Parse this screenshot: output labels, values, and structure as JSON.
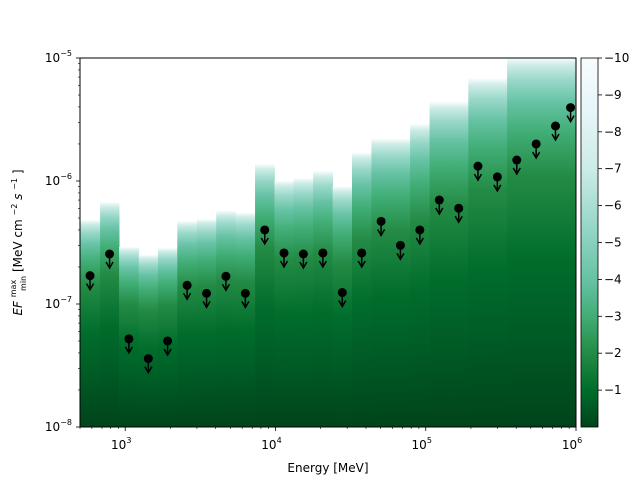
{
  "chart_data": {
    "type": "heatmap",
    "xlabel": "Energy [MeV]",
    "ylabel_main": "EF",
    "ylabel_sup": "max",
    "ylabel_sub": "min",
    "ylabel_units": " [MeV cm",
    "ylabel_units_exp1": "−2",
    "ylabel_units_mid": "s",
    "ylabel_units_exp2": "−1",
    "ylabel_units_end": "]",
    "x_scale": "log",
    "y_scale": "log",
    "xlim": [
      500,
      1000000
    ],
    "ylim": [
      1e-08,
      1e-05
    ],
    "x_ticks": [
      {
        "value": 1000,
        "base": "10",
        "exp": "3"
      },
      {
        "value": 10000,
        "base": "10",
        "exp": "4"
      },
      {
        "value": 100000,
        "base": "10",
        "exp": "5"
      },
      {
        "value": 1000000,
        "base": "10",
        "exp": "6"
      }
    ],
    "y_ticks": [
      {
        "value": 1e-08,
        "base": "10",
        "exp": "−8"
      },
      {
        "value": 1e-07,
        "base": "10",
        "exp": "−7"
      },
      {
        "value": 1e-06,
        "base": "10",
        "exp": "−6"
      },
      {
        "value": 1e-05,
        "base": "10",
        "exp": "−5"
      }
    ],
    "colorbar": {
      "colormap": "BuGn_r",
      "range": [
        -10,
        0
      ],
      "tick_labels": [
        "−1",
        "−2",
        "−3",
        "−4",
        "−5",
        "−6",
        "−7",
        "−8",
        "−9",
        "−10"
      ],
      "tick_values": [
        -1,
        -2,
        -3,
        -4,
        -5,
        -6,
        -7,
        -8,
        -9,
        -10
      ]
    },
    "bins": [
      {
        "e_min": 500,
        "e_max": 680,
        "top": 4.8e-07,
        "ul": 1.7e-07
      },
      {
        "e_min": 680,
        "e_max": 910,
        "top": 6.7e-07,
        "ul": 2.55e-07
      },
      {
        "e_min": 910,
        "e_max": 1230,
        "top": 2.9e-07,
        "ul": 5.2e-08
      },
      {
        "e_min": 1230,
        "e_max": 1650,
        "top": 2.5e-07,
        "ul": 3.6e-08
      },
      {
        "e_min": 1650,
        "e_max": 2220,
        "top": 2.85e-07,
        "ul": 5e-08
      },
      {
        "e_min": 2220,
        "e_max": 3000,
        "top": 4.7e-07,
        "ul": 1.42e-07
      },
      {
        "e_min": 3000,
        "e_max": 4030,
        "top": 4.9e-07,
        "ul": 1.22e-07
      },
      {
        "e_min": 4030,
        "e_max": 5430,
        "top": 5.7e-07,
        "ul": 1.68e-07
      },
      {
        "e_min": 5430,
        "e_max": 7310,
        "top": 5.5e-07,
        "ul": 1.22e-07
      },
      {
        "e_min": 7310,
        "e_max": 9840,
        "top": 1.37e-06,
        "ul": 4e-07
      },
      {
        "e_min": 9840,
        "e_max": 13200,
        "top": 1e-06,
        "ul": 2.6e-07
      },
      {
        "e_min": 13200,
        "e_max": 17800,
        "top": 1.05e-06,
        "ul": 2.55e-07
      },
      {
        "e_min": 17800,
        "e_max": 24000,
        "top": 1.2e-06,
        "ul": 2.6e-07
      },
      {
        "e_min": 24000,
        "e_max": 32300,
        "top": 9e-07,
        "ul": 1.24e-07
      },
      {
        "e_min": 32300,
        "e_max": 43500,
        "top": 1.7e-06,
        "ul": 2.6e-07
      },
      {
        "e_min": 43500,
        "e_max": 58500,
        "top": 2.2e-06,
        "ul": 4.7e-07
      },
      {
        "e_min": 58500,
        "e_max": 78700,
        "top": 2.2e-06,
        "ul": 3e-07
      },
      {
        "e_min": 78700,
        "e_max": 106000,
        "top": 2.9e-06,
        "ul": 4e-07
      },
      {
        "e_min": 106000,
        "e_max": 143000,
        "top": 4.4e-06,
        "ul": 7e-07
      },
      {
        "e_min": 143000,
        "e_max": 192000,
        "top": 4.4e-06,
        "ul": 6e-07
      },
      {
        "e_min": 192000,
        "e_max": 258000,
        "top": 6.8e-06,
        "ul": 1.32e-06
      },
      {
        "e_min": 258000,
        "e_max": 348000,
        "top": 6.8e-06,
        "ul": 1.08e-06
      },
      {
        "e_min": 348000,
        "e_max": 468000,
        "top": 1e-05,
        "ul": 1.48e-06
      },
      {
        "e_min": 468000,
        "e_max": 630000,
        "top": 1e-05,
        "ul": 2e-06
      },
      {
        "e_min": 630000,
        "e_max": 847000,
        "top": 1e-05,
        "ul": 2.8e-06
      },
      {
        "e_min": 847000,
        "e_max": 1000000,
        "top": 1e-05,
        "ul": 3.95e-06
      }
    ]
  }
}
